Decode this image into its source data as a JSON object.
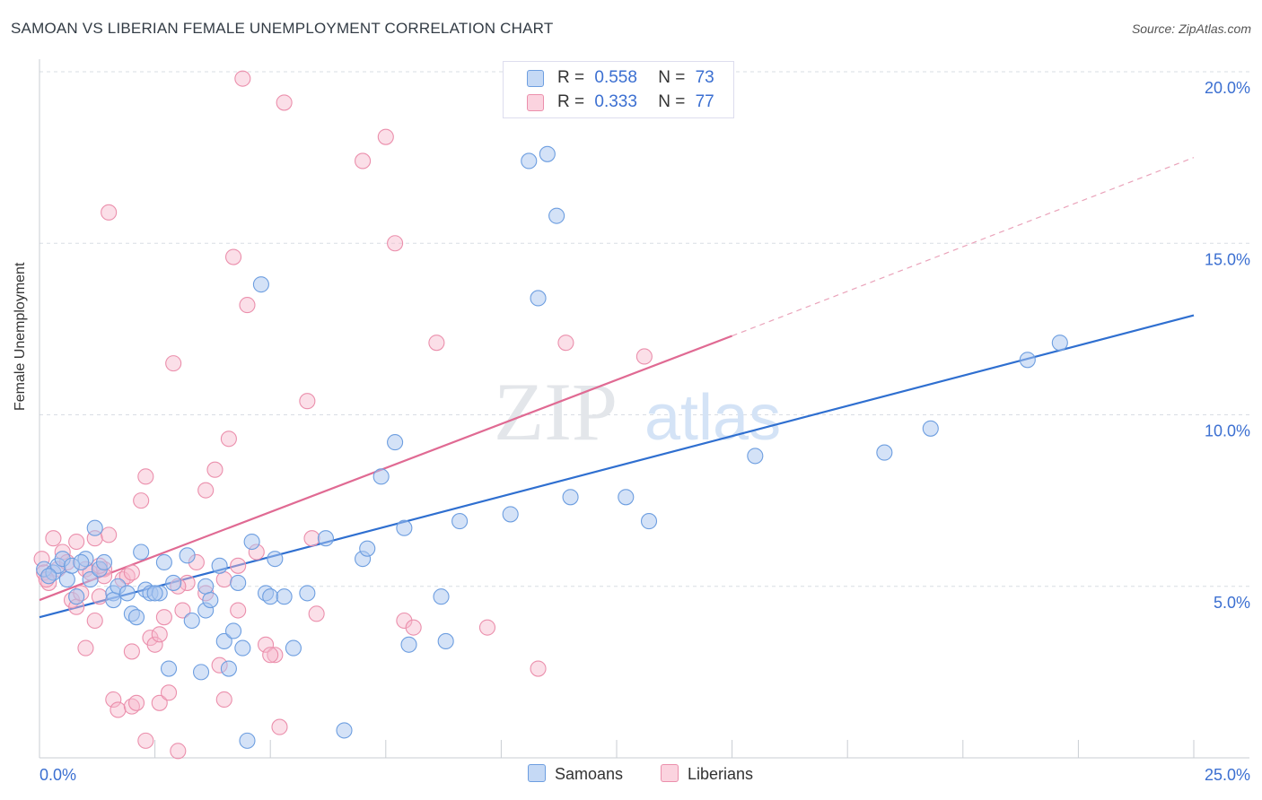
{
  "title": "SAMOAN VS LIBERIAN FEMALE UNEMPLOYMENT CORRELATION CHART",
  "source": "Source: ZipAtlas.com",
  "watermark": {
    "zip": "ZIP",
    "atlas": "atlas"
  },
  "legend": {
    "rows": [
      {
        "r_label": "R =",
        "r_value": "0.558",
        "n_label": "N =",
        "n_value": "73"
      },
      {
        "r_label": "R =",
        "r_value": "0.333",
        "n_label": "N =",
        "n_value": "77"
      }
    ],
    "bottom": [
      "Samoans",
      "Liberians"
    ]
  },
  "colors": {
    "samoans_fill": "#a9c6ef",
    "samoans_stroke": "#6d9ee0",
    "samoans_line": "#2f6fd0",
    "liberians_fill": "#f6b8cb",
    "liberians_stroke": "#eb8fac",
    "liberians_line": "#e06a93",
    "tick_text": "#3b6fd1",
    "grid": "#d9dde3"
  },
  "chart_data": {
    "type": "scatter",
    "title": "SAMOAN VS LIBERIAN FEMALE UNEMPLOYMENT CORRELATION CHART",
    "xlabel": "",
    "ylabel": "Female Unemployment",
    "xlim": [
      0,
      25
    ],
    "ylim": [
      0,
      20
    ],
    "x_tick_labels": [
      "0.0%",
      "25.0%"
    ],
    "y_ticks": [
      5,
      10,
      15,
      20
    ],
    "y_tick_labels": [
      "5.0%",
      "10.0%",
      "15.0%",
      "20.0%"
    ],
    "grid": true,
    "series": [
      {
        "name": "Samoans",
        "r": 0.558,
        "n": 73,
        "trend": {
          "x": [
            0,
            25
          ],
          "y": [
            4.1,
            12.9
          ]
        },
        "points": [
          [
            0.1,
            5.5
          ],
          [
            0.3,
            5.4
          ],
          [
            0.4,
            5.6
          ],
          [
            0.5,
            5.8
          ],
          [
            0.6,
            5.2
          ],
          [
            0.7,
            5.6
          ],
          [
            0.8,
            4.7
          ],
          [
            1.0,
            5.8
          ],
          [
            1.1,
            5.2
          ],
          [
            1.2,
            6.7
          ],
          [
            1.3,
            5.5
          ],
          [
            1.4,
            5.7
          ],
          [
            1.6,
            4.8
          ],
          [
            1.6,
            4.6
          ],
          [
            1.7,
            5.0
          ],
          [
            1.9,
            4.8
          ],
          [
            2.0,
            4.2
          ],
          [
            2.1,
            4.1
          ],
          [
            2.2,
            6.0
          ],
          [
            2.3,
            4.9
          ],
          [
            2.4,
            4.8
          ],
          [
            2.6,
            4.8
          ],
          [
            2.7,
            5.7
          ],
          [
            2.8,
            2.6
          ],
          [
            2.9,
            5.1
          ],
          [
            3.2,
            5.9
          ],
          [
            3.3,
            4.0
          ],
          [
            3.5,
            2.5
          ],
          [
            3.6,
            4.3
          ],
          [
            3.6,
            5.0
          ],
          [
            3.7,
            4.6
          ],
          [
            3.9,
            5.6
          ],
          [
            4.0,
            3.4
          ],
          [
            4.1,
            2.6
          ],
          [
            4.2,
            3.7
          ],
          [
            4.3,
            5.1
          ],
          [
            4.4,
            3.2
          ],
          [
            4.5,
            0.5
          ],
          [
            4.6,
            6.3
          ],
          [
            4.8,
            13.8
          ],
          [
            4.9,
            4.8
          ],
          [
            5.0,
            4.7
          ],
          [
            5.1,
            5.8
          ],
          [
            5.3,
            4.7
          ],
          [
            5.5,
            3.2
          ],
          [
            5.8,
            4.8
          ],
          [
            6.2,
            6.4
          ],
          [
            6.6,
            0.8
          ],
          [
            7.0,
            5.8
          ],
          [
            7.1,
            6.1
          ],
          [
            7.4,
            8.2
          ],
          [
            7.7,
            9.2
          ],
          [
            7.9,
            6.7
          ],
          [
            8.0,
            3.3
          ],
          [
            8.7,
            4.7
          ],
          [
            8.8,
            3.4
          ],
          [
            9.1,
            6.9
          ],
          [
            10.2,
            7.1
          ],
          [
            10.6,
            17.4
          ],
          [
            10.8,
            13.4
          ],
          [
            11.0,
            17.6
          ],
          [
            11.2,
            15.8
          ],
          [
            11.5,
            7.6
          ],
          [
            12.7,
            7.6
          ],
          [
            13.2,
            6.9
          ],
          [
            15.5,
            8.8
          ],
          [
            18.3,
            8.9
          ],
          [
            19.3,
            9.6
          ],
          [
            21.4,
            11.6
          ],
          [
            22.1,
            12.1
          ],
          [
            0.2,
            5.3
          ],
          [
            0.9,
            5.7
          ],
          [
            2.5,
            4.8
          ]
        ]
      },
      {
        "name": "Liberians",
        "r": 0.333,
        "n": 77,
        "trend": {
          "x": [
            0,
            15.0
          ],
          "y": [
            4.6,
            12.3
          ],
          "dashed_to": {
            "x": 25,
            "y": 17.5
          }
        },
        "points": [
          [
            0.05,
            5.8
          ],
          [
            0.1,
            5.4
          ],
          [
            0.2,
            5.1
          ],
          [
            0.3,
            6.4
          ],
          [
            0.4,
            5.5
          ],
          [
            0.5,
            6.0
          ],
          [
            0.6,
            5.7
          ],
          [
            0.7,
            4.6
          ],
          [
            0.8,
            4.4
          ],
          [
            0.8,
            6.3
          ],
          [
            0.9,
            4.8
          ],
          [
            1.0,
            3.2
          ],
          [
            1.0,
            5.5
          ],
          [
            1.1,
            5.4
          ],
          [
            1.2,
            6.4
          ],
          [
            1.2,
            4.0
          ],
          [
            1.3,
            4.7
          ],
          [
            1.4,
            5.5
          ],
          [
            1.4,
            5.3
          ],
          [
            1.5,
            15.9
          ],
          [
            1.5,
            6.5
          ],
          [
            1.6,
            1.7
          ],
          [
            1.7,
            1.4
          ],
          [
            1.8,
            5.2
          ],
          [
            1.9,
            5.3
          ],
          [
            2.0,
            1.5
          ],
          [
            2.0,
            3.1
          ],
          [
            2.1,
            1.6
          ],
          [
            2.2,
            7.5
          ],
          [
            2.3,
            8.2
          ],
          [
            2.3,
            0.5
          ],
          [
            2.4,
            3.5
          ],
          [
            2.5,
            3.3
          ],
          [
            2.6,
            1.6
          ],
          [
            2.6,
            3.6
          ],
          [
            2.7,
            4.1
          ],
          [
            2.8,
            1.9
          ],
          [
            2.9,
            11.5
          ],
          [
            3.0,
            0.2
          ],
          [
            3.1,
            4.3
          ],
          [
            3.2,
            5.1
          ],
          [
            3.4,
            5.7
          ],
          [
            3.6,
            4.8
          ],
          [
            3.6,
            7.8
          ],
          [
            3.8,
            8.4
          ],
          [
            3.9,
            2.7
          ],
          [
            4.0,
            1.7
          ],
          [
            4.1,
            9.3
          ],
          [
            4.2,
            14.6
          ],
          [
            4.3,
            5.6
          ],
          [
            4.3,
            4.3
          ],
          [
            4.4,
            19.8
          ],
          [
            4.5,
            13.2
          ],
          [
            4.7,
            6.0
          ],
          [
            4.9,
            3.3
          ],
          [
            5.1,
            3.0
          ],
          [
            5.2,
            0.9
          ],
          [
            5.3,
            19.1
          ],
          [
            5.8,
            10.4
          ],
          [
            5.9,
            6.4
          ],
          [
            6.0,
            4.2
          ],
          [
            7.0,
            17.4
          ],
          [
            7.5,
            18.1
          ],
          [
            7.7,
            15.0
          ],
          [
            7.9,
            4.0
          ],
          [
            8.1,
            3.8
          ],
          [
            8.6,
            12.1
          ],
          [
            9.7,
            3.8
          ],
          [
            10.8,
            2.6
          ],
          [
            11.4,
            12.1
          ],
          [
            13.1,
            11.7
          ],
          [
            0.15,
            5.2
          ],
          [
            1.3,
            5.6
          ],
          [
            2.0,
            5.4
          ],
          [
            3.0,
            5.0
          ],
          [
            4.0,
            5.2
          ],
          [
            5.0,
            3.0
          ]
        ]
      }
    ]
  }
}
